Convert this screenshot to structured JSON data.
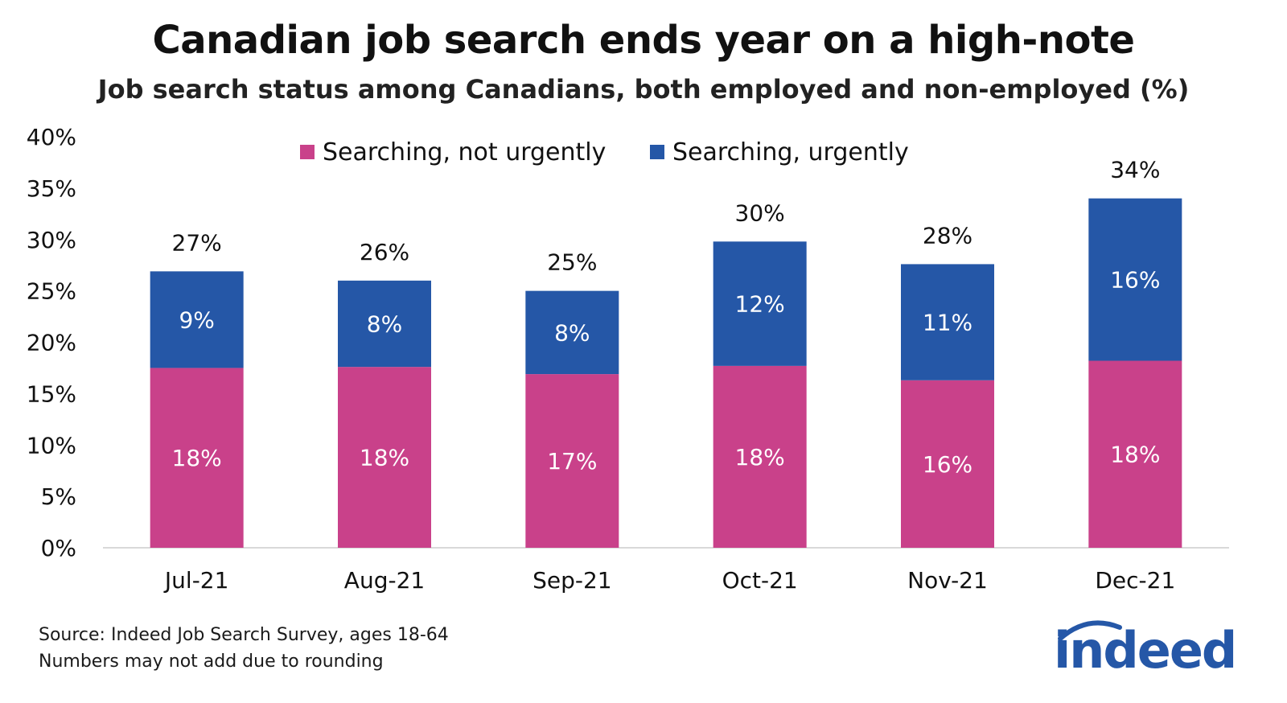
{
  "title": "Canadian job search ends year on a high-note",
  "subtitle": "Job search status among Canadians, both employed and non-employed (%)",
  "footnotes": {
    "source": "Source: Indeed Job Search Survey, ages 18-64",
    "note": "Numbers may not add due to rounding"
  },
  "logo": {
    "text": "indeed",
    "color": "#2557a7",
    "icon": "indeed-logo-arc"
  },
  "chart_data": {
    "type": "bar",
    "stacked": true,
    "categories": [
      "Jul-21",
      "Aug-21",
      "Sep-21",
      "Oct-21",
      "Nov-21",
      "Dec-21"
    ],
    "series": [
      {
        "name": "Searching, not urgently",
        "color": "#c9418a",
        "values": [
          17.5,
          17.6,
          16.9,
          17.7,
          16.3,
          18.2
        ],
        "labels": [
          "18%",
          "18%",
          "17%",
          "18%",
          "16%",
          "18%"
        ]
      },
      {
        "name": "Searching, urgently",
        "color": "#2557a7",
        "values": [
          9.4,
          8.4,
          8.1,
          12.1,
          11.3,
          15.8
        ],
        "labels": [
          "9%",
          "8%",
          "8%",
          "12%",
          "11%",
          "16%"
        ]
      }
    ],
    "totals": [
      "27%",
      "26%",
      "25%",
      "30%",
      "28%",
      "34%"
    ],
    "ylim": [
      0,
      40
    ],
    "yticks": [
      0,
      5,
      10,
      15,
      20,
      25,
      30,
      35,
      40
    ],
    "ytick_suffix": "%",
    "xlabel": "",
    "ylabel": "",
    "grid": false,
    "legend_position": "top"
  }
}
